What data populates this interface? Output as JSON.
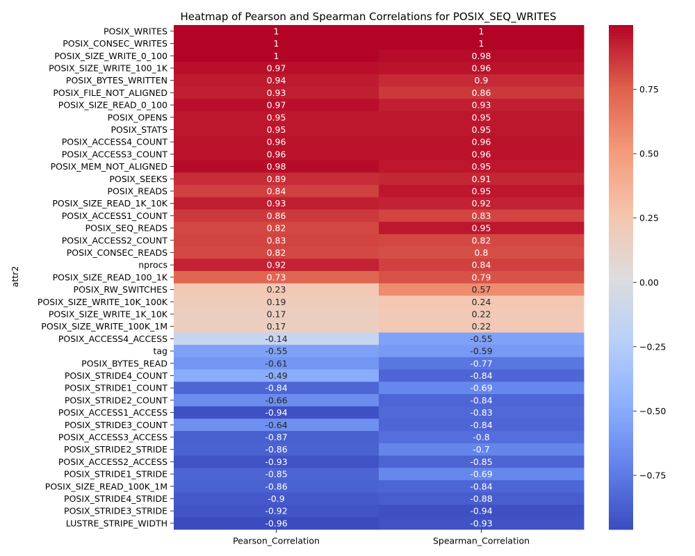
{
  "chart_data": {
    "type": "heatmap",
    "title": "Heatmap of Pearson and Spearman Correlations for POSIX_SEQ_WRITES",
    "ylabel": "attr2",
    "xlabel": "",
    "columns": [
      "Pearson_Correlation",
      "Spearman_Correlation"
    ],
    "rows": [
      "POSIX_WRITES",
      "POSIX_CONSEC_WRITES",
      "POSIX_SIZE_WRITE_0_100",
      "POSIX_SIZE_WRITE_100_1K",
      "POSIX_BYTES_WRITTEN",
      "POSIX_FILE_NOT_ALIGNED",
      "POSIX_SIZE_READ_0_100",
      "POSIX_OPENS",
      "POSIX_STATS",
      "POSIX_ACCESS4_COUNT",
      "POSIX_ACCESS3_COUNT",
      "POSIX_MEM_NOT_ALIGNED",
      "POSIX_SEEKS",
      "POSIX_READS",
      "POSIX_SIZE_READ_1K_10K",
      "POSIX_ACCESS1_COUNT",
      "POSIX_SEQ_READS",
      "POSIX_ACCESS2_COUNT",
      "POSIX_CONSEC_READS",
      "nprocs",
      "POSIX_SIZE_READ_100_1K",
      "POSIX_RW_SWITCHES",
      "POSIX_SIZE_WRITE_10K_100K",
      "POSIX_SIZE_WRITE_1K_10K",
      "POSIX_SIZE_WRITE_100K_1M",
      "POSIX_ACCESS4_ACCESS",
      "tag",
      "POSIX_BYTES_READ",
      "POSIX_STRIDE4_COUNT",
      "POSIX_STRIDE1_COUNT",
      "POSIX_STRIDE2_COUNT",
      "POSIX_ACCESS1_ACCESS",
      "POSIX_STRIDE3_COUNT",
      "POSIX_ACCESS3_ACCESS",
      "POSIX_STRIDE2_STRIDE",
      "POSIX_ACCESS2_ACCESS",
      "POSIX_STRIDE1_STRIDE",
      "POSIX_SIZE_READ_100K_1M",
      "POSIX_STRIDE4_STRIDE",
      "POSIX_STRIDE3_STRIDE",
      "LUSTRE_STRIPE_WIDTH"
    ],
    "values": [
      [
        1,
        1
      ],
      [
        1,
        1
      ],
      [
        1,
        0.98
      ],
      [
        0.97,
        0.96
      ],
      [
        0.94,
        0.9
      ],
      [
        0.93,
        0.86
      ],
      [
        0.97,
        0.93
      ],
      [
        0.95,
        0.95
      ],
      [
        0.95,
        0.95
      ],
      [
        0.96,
        0.96
      ],
      [
        0.96,
        0.96
      ],
      [
        0.98,
        0.95
      ],
      [
        0.89,
        0.91
      ],
      [
        0.84,
        0.95
      ],
      [
        0.93,
        0.92
      ],
      [
        0.86,
        0.83
      ],
      [
        0.82,
        0.95
      ],
      [
        0.83,
        0.82
      ],
      [
        0.82,
        0.8
      ],
      [
        0.92,
        0.84
      ],
      [
        0.73,
        0.79
      ],
      [
        0.23,
        0.57
      ],
      [
        0.19,
        0.24
      ],
      [
        0.17,
        0.22
      ],
      [
        0.17,
        0.22
      ],
      [
        -0.14,
        -0.55
      ],
      [
        -0.55,
        -0.59
      ],
      [
        -0.61,
        -0.77
      ],
      [
        -0.49,
        -0.84
      ],
      [
        -0.84,
        -0.69
      ],
      [
        -0.66,
        -0.84
      ],
      [
        -0.94,
        -0.83
      ],
      [
        -0.64,
        -0.84
      ],
      [
        -0.87,
        -0.8
      ],
      [
        -0.86,
        -0.7
      ],
      [
        -0.93,
        -0.85
      ],
      [
        -0.85,
        -0.69
      ],
      [
        -0.86,
        -0.84
      ],
      [
        -0.9,
        -0.88
      ],
      [
        -0.92,
        -0.94
      ],
      [
        -0.96,
        -0.93
      ]
    ],
    "colormap": "coolwarm",
    "vmin": -0.96,
    "vmax": 1,
    "colorbar_ticks": [
      0.75,
      0.5,
      0.25,
      0,
      -0.25,
      -0.5,
      -0.75
    ],
    "colorbar_tick_labels": [
      "0.75",
      "0.50",
      "0.25",
      "0.00",
      "−0.25",
      "−0.50",
      "−0.75"
    ]
  }
}
